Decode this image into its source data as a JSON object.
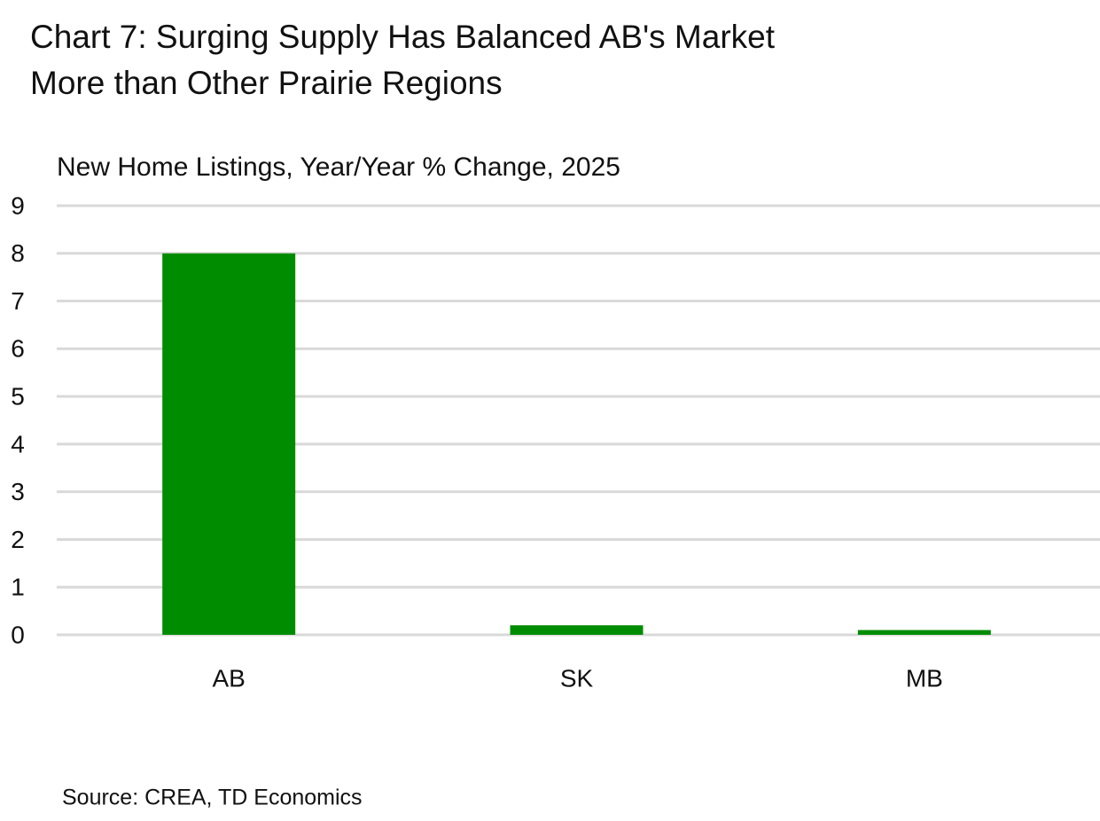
{
  "chart_data": {
    "type": "bar",
    "title": "Chart 7: Surging Supply Has Balanced AB's Market More than Other Prairie Regions",
    "subtitle": "New Home Listings, Year/Year % Change, 2025",
    "categories": [
      "AB",
      "SK",
      "MB"
    ],
    "values": [
      8.0,
      0.2,
      0.1
    ],
    "color": "#008c00",
    "ylim": [
      0,
      9
    ],
    "yticks": [
      0,
      1,
      2,
      3,
      4,
      5,
      6,
      7,
      8,
      9
    ],
    "grid": true,
    "source": "Source: CREA, TD Economics"
  }
}
